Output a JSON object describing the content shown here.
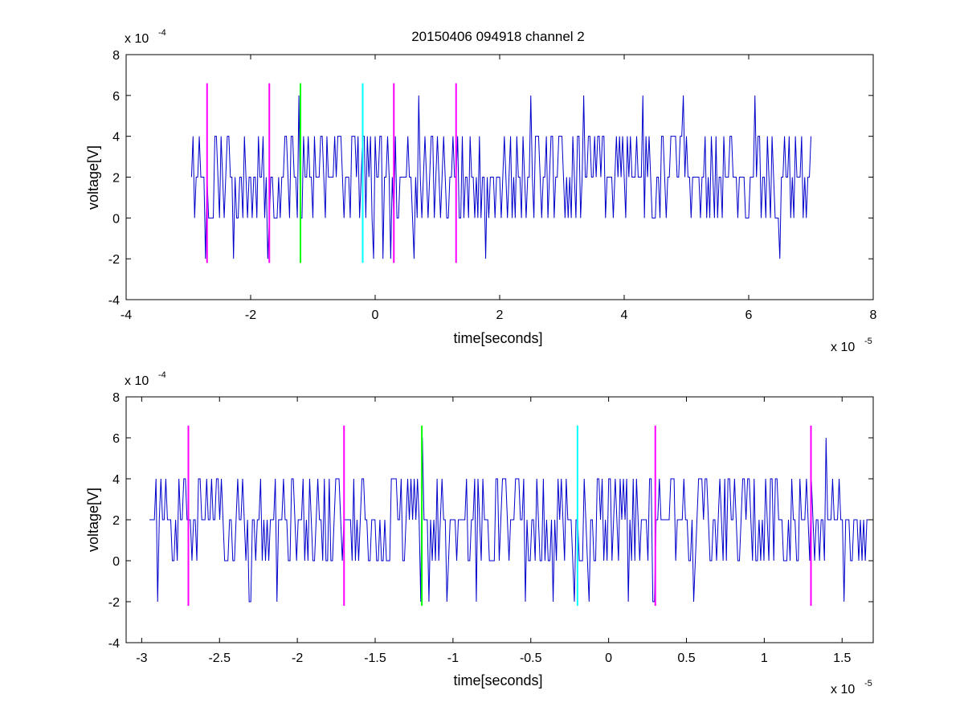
{
  "chart_data": [
    {
      "type": "line",
      "title": "20150406 094918 channel 2",
      "xlabel": "time[seconds]",
      "ylabel": "voltage[V]",
      "x_exponent_label": "x 10",
      "x_exponent": "-5",
      "y_exponent_label": "x 10",
      "y_exponent": "-4",
      "xlim": [
        -4,
        8
      ],
      "ylim": [
        -4,
        8
      ],
      "xticks": [
        -4,
        -2,
        0,
        2,
        4,
        6,
        8
      ],
      "xtick_labels": [
        "-4",
        "-2",
        "0",
        "2",
        "4",
        "6",
        "8"
      ],
      "yticks": [
        -4,
        -2,
        0,
        2,
        4,
        6,
        8
      ],
      "ytick_labels": [
        "-4",
        "-2",
        "0",
        "2",
        "4",
        "6",
        "8"
      ],
      "grid": false,
      "series": [
        {
          "color": "#0000cc",
          "x_start": -2.95,
          "x_end": 7.0,
          "step": 0.025,
          "seed": 7,
          "levels": [
            -2,
            0,
            2,
            4,
            6
          ],
          "spikes": [
            [
              -1.22,
              6
            ],
            [
              -0.55,
              4
            ],
            [
              0.7,
              6
            ],
            [
              2.5,
              6
            ],
            [
              3.35,
              6
            ],
            [
              4.3,
              6
            ],
            [
              4.95,
              6
            ],
            [
              6.1,
              6
            ]
          ]
        }
      ],
      "markers": [
        {
          "x": -2.7,
          "color": "#ff00ff"
        },
        {
          "x": -1.7,
          "color": "#ff00ff"
        },
        {
          "x": -1.2,
          "color": "#00ff00"
        },
        {
          "x": -0.2,
          "color": "#00ffff"
        },
        {
          "x": 0.3,
          "color": "#ff00ff"
        },
        {
          "x": 1.3,
          "color": "#ff00ff"
        }
      ],
      "marker_range": [
        -2.2,
        6.6
      ]
    },
    {
      "type": "line",
      "title": "",
      "xlabel": "time[seconds]",
      "ylabel": "voltage[V]",
      "x_exponent_label": "x 10",
      "x_exponent": "-5",
      "y_exponent_label": "x 10",
      "y_exponent": "-4",
      "xlim": [
        -3.1,
        1.7
      ],
      "ylim": [
        -4,
        8
      ],
      "xticks": [
        -3,
        -2.5,
        -2,
        -1.5,
        -1,
        -0.5,
        0,
        0.5,
        1,
        1.5
      ],
      "xtick_labels": [
        "-3",
        "-2.5",
        "-2",
        "-1.5",
        "-1",
        "-0.5",
        "0",
        "0.5",
        "1",
        "1.5"
      ],
      "yticks": [
        -4,
        -2,
        0,
        2,
        4,
        6,
        8
      ],
      "ytick_labels": [
        "-4",
        "-2",
        "0",
        "2",
        "4",
        "6",
        "8"
      ],
      "grid": false,
      "series": [
        {
          "color": "#0000cc",
          "x_start": -2.95,
          "x_end": 1.7,
          "step": 0.0105,
          "seed": 11,
          "levels": [
            -2,
            0,
            2,
            4,
            6
          ],
          "spikes": [
            [
              -1.2,
              6
            ],
            [
              1.4,
              6
            ],
            [
              0.29,
              -2
            ],
            [
              -2.9,
              -2
            ],
            [
              -2.3,
              -2
            ]
          ]
        }
      ],
      "markers": [
        {
          "x": -2.7,
          "color": "#ff00ff"
        },
        {
          "x": -1.7,
          "color": "#ff00ff"
        },
        {
          "x": -1.2,
          "color": "#00ff00"
        },
        {
          "x": -0.2,
          "color": "#00ffff"
        },
        {
          "x": 0.3,
          "color": "#ff00ff"
        },
        {
          "x": 1.3,
          "color": "#ff00ff"
        }
      ],
      "marker_range": [
        -2.2,
        6.6
      ]
    }
  ]
}
